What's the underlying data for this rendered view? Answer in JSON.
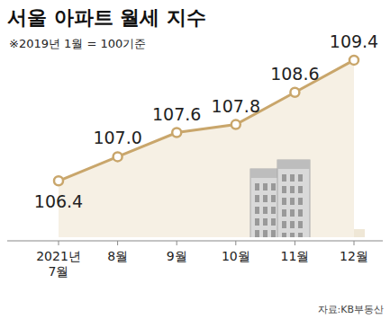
{
  "chart_data": {
    "type": "line",
    "title": "서울 아파트 월세 지수",
    "subtitle": "※2019년 1월 = 100기준",
    "source": "자료:KB부동산",
    "categories": [
      "2021년 7월",
      "8월",
      "9월",
      "10월",
      "11월",
      "12월"
    ],
    "values": [
      106.4,
      107.0,
      107.6,
      107.8,
      108.6,
      109.4
    ],
    "value_labels": [
      "106.4",
      "107.0",
      "107.6",
      "107.8",
      "108.6",
      "109.4"
    ],
    "color": "#c9a66b",
    "ylim": [
      105,
      110
    ],
    "tick_labels": "x",
    "data_labels": true,
    "marker": "circle",
    "grid": false
  }
}
